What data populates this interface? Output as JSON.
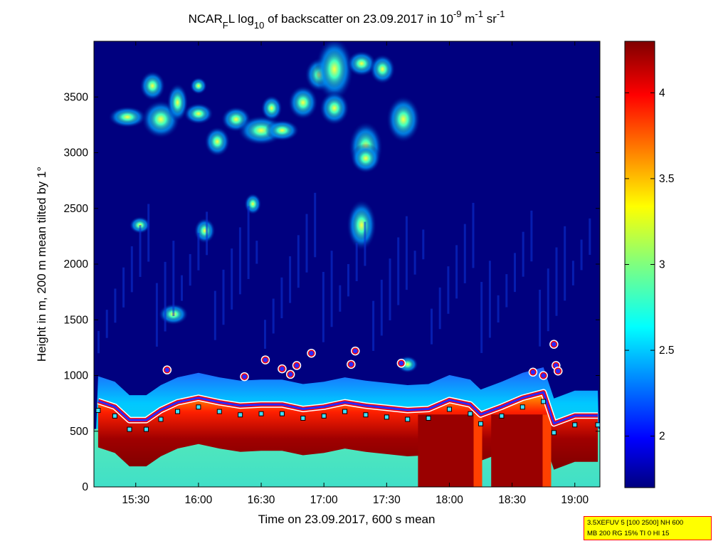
{
  "chart_data": {
    "type": "heatmap",
    "title": {
      "main": "NCAR",
      "sub_f": "F",
      "after_f": "L log",
      "sub_10": "10",
      "mid": " of backscatter on 23.09.2017 in 10",
      "exp1": "-9",
      "unit1": " m",
      "exp2": "-1",
      "unit2": " sr",
      "exp3": "-1"
    },
    "xlabel": "Time on 23.09.2017, 600 s mean",
    "ylabel": "Height in m, 200 m mean tilted by 1°",
    "x_range": [
      "15:10",
      "19:12"
    ],
    "y_range": [
      0,
      4000
    ],
    "x_ticks": [
      "15:30",
      "16:00",
      "16:30",
      "17:00",
      "17:30",
      "18:00",
      "18:30",
      "19:00"
    ],
    "y_ticks": [
      "0",
      "500",
      "1000",
      "1500",
      "2000",
      "2500",
      "3000",
      "3500"
    ],
    "colorbar": {
      "range": [
        1.7,
        4.3
      ],
      "ticks": [
        "2",
        "2.5",
        "3",
        "3.5",
        "4"
      ],
      "colormap": "jet"
    },
    "cloud_base_series": [
      {
        "time": "15:12",
        "height": 770
      },
      {
        "time": "15:20",
        "height": 720
      },
      {
        "time": "15:27",
        "height": 600
      },
      {
        "time": "15:35",
        "height": 600
      },
      {
        "time": "15:42",
        "height": 690
      },
      {
        "time": "15:50",
        "height": 760
      },
      {
        "time": "16:00",
        "height": 800
      },
      {
        "time": "16:10",
        "height": 760
      },
      {
        "time": "16:20",
        "height": 730
      },
      {
        "time": "16:30",
        "height": 740
      },
      {
        "time": "16:40",
        "height": 740
      },
      {
        "time": "16:50",
        "height": 700
      },
      {
        "time": "17:00",
        "height": 720
      },
      {
        "time": "17:10",
        "height": 760
      },
      {
        "time": "17:20",
        "height": 730
      },
      {
        "time": "17:30",
        "height": 710
      },
      {
        "time": "17:40",
        "height": 690
      },
      {
        "time": "17:50",
        "height": 700
      },
      {
        "time": "18:00",
        "height": 780
      },
      {
        "time": "18:10",
        "height": 740
      },
      {
        "time": "18:15",
        "height": 650
      },
      {
        "time": "18:25",
        "height": 720
      },
      {
        "time": "18:35",
        "height": 800
      },
      {
        "time": "18:45",
        "height": 850
      },
      {
        "time": "18:50",
        "height": 570
      },
      {
        "time": "19:00",
        "height": 640
      },
      {
        "time": "19:11",
        "height": 640
      }
    ],
    "elevated_detections": [
      {
        "time": "15:45",
        "height": 1050
      },
      {
        "time": "16:22",
        "height": 990
      },
      {
        "time": "16:32",
        "height": 1140
      },
      {
        "time": "16:40",
        "height": 1060
      },
      {
        "time": "16:47",
        "height": 1090
      },
      {
        "time": "16:44",
        "height": 1010
      },
      {
        "time": "16:54",
        "height": 1200
      },
      {
        "time": "17:13",
        "height": 1100
      },
      {
        "time": "17:15",
        "height": 1220
      },
      {
        "time": "17:37",
        "height": 1110
      },
      {
        "time": "18:40",
        "height": 1030
      },
      {
        "time": "18:45",
        "height": 1000
      },
      {
        "time": "18:50",
        "height": 1280
      },
      {
        "time": "18:51",
        "height": 1090
      },
      {
        "time": "18:52",
        "height": 1040
      }
    ]
  },
  "info_box": {
    "line1": "3.5XEFUV 5 [100 2500] NH 600",
    "line2": "MB 200 RG 15% TI 0 HI 15"
  },
  "colors": {
    "background_low": "#00007f",
    "aerosol_layer": "#3fd8c0",
    "cloud_red": "#b00000",
    "marker_edge": "#ff0000",
    "marker_fill": "#3030ff"
  }
}
